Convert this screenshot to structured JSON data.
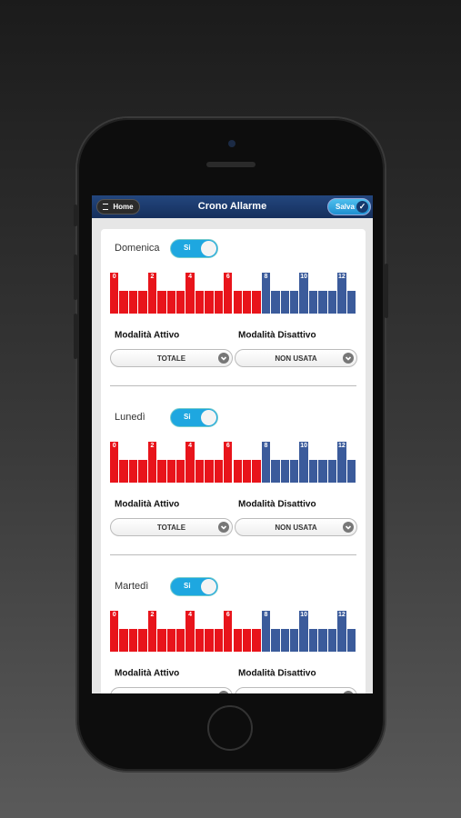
{
  "header": {
    "home": "Home",
    "title": "Crono Allarme",
    "save": "Salva"
  },
  "days": [
    {
      "name": "Domenica",
      "toggle": "Si",
      "hours": [
        0,
        2,
        4,
        6,
        8,
        10,
        12
      ],
      "active_label": "Modalità Attivo",
      "active_value": "TOTALE",
      "inactive_label": "Modalità Disattivo",
      "inactive_value": "NON USATA"
    },
    {
      "name": "Lunedì",
      "toggle": "Si",
      "hours": [
        0,
        2,
        4,
        6,
        8,
        10,
        12
      ],
      "active_label": "Modalità Attivo",
      "active_value": "TOTALE",
      "inactive_label": "Modalità Disattivo",
      "inactive_value": "NON USATA"
    },
    {
      "name": "Martedì",
      "toggle": "Si",
      "hours": [
        0,
        2,
        4,
        6,
        8,
        10,
        12
      ],
      "active_label": "Modalità Attivo",
      "inactive_label": "Modalità Disattivo"
    }
  ]
}
